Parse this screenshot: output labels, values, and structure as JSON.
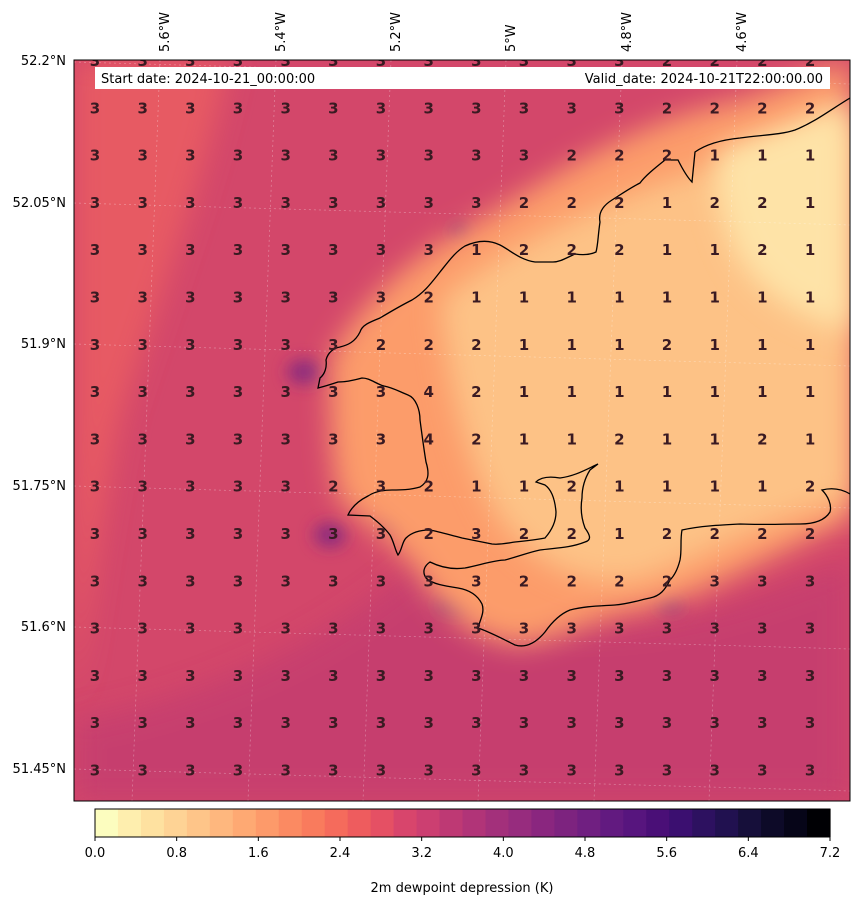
{
  "header": {
    "start_label": "Start date: 2024-10-21_00:00:00",
    "valid_label": "Valid_date: 2024-10-21T22:00:00.00"
  },
  "axes": {
    "lat_labels": [
      "52.2°N",
      "52.05°N",
      "51.9°N",
      "51.75°N",
      "51.6°N",
      "51.45°N"
    ],
    "lon_labels": [
      "5.6°W",
      "5.4°W",
      "5.2°W",
      "5°W",
      "4.8°W",
      "4.6°W"
    ]
  },
  "colorbar": {
    "title": "2m dewpoint depression (K)",
    "ticks": [
      "0.0",
      "0.8",
      "1.6",
      "2.4",
      "3.2",
      "4.0",
      "4.8",
      "5.6",
      "6.4",
      "7.2"
    ],
    "colors": [
      "#fcfdbf",
      "#feeeae",
      "#fee1a0",
      "#fed395",
      "#fec589",
      "#feb77e",
      "#fea973",
      "#fd9a6a",
      "#fb8a62",
      "#f97b5d",
      "#f56b5c",
      "#ee5c5e",
      "#e55064",
      "#d8456c",
      "#cc3f71",
      "#be3974",
      "#b13478",
      "#a3307b",
      "#972c7e",
      "#8a267f",
      "#7d237f",
      "#701f81",
      "#621a80",
      "#57157e",
      "#4a0f77",
      "#3b0f70",
      "#2d1160",
      "#211150",
      "#160f3a",
      "#0d0a28",
      "#060518",
      "#000004"
    ]
  },
  "map_colors": {
    "sea_base": "#d3476a",
    "sea_outer": "#c43c6f",
    "sea_west": "#e75a64",
    "land_warm": "#fc9c6a",
    "land_hot": "#fdc286",
    "land_pale": "#fee3a7",
    "dark_patch": "#8a2b7e",
    "coastline": "#000000"
  },
  "grid_values": [
    [
      "3",
      "3",
      "3",
      "3",
      "3",
      "3",
      "3",
      "3",
      "3",
      "3",
      "3",
      "3",
      "2",
      "2",
      "2",
      "2"
    ],
    [
      "3",
      "3",
      "3",
      "3",
      "3",
      "3",
      "3",
      "3",
      "3",
      "3",
      "3",
      "3",
      "2",
      "2",
      "2",
      "2"
    ],
    [
      "3",
      "3",
      "3",
      "3",
      "3",
      "3",
      "3",
      "3",
      "3",
      "3",
      "2",
      "2",
      "2",
      "1",
      "1",
      "1"
    ],
    [
      "3",
      "3",
      "3",
      "3",
      "3",
      "3",
      "3",
      "3",
      "3",
      "2",
      "2",
      "2",
      "1",
      "2",
      "2",
      "1"
    ],
    [
      "3",
      "3",
      "3",
      "3",
      "3",
      "3",
      "3",
      "3",
      "1",
      "2",
      "2",
      "2",
      "1",
      "1",
      "2",
      "1"
    ],
    [
      "3",
      "3",
      "3",
      "3",
      "3",
      "3",
      "3",
      "2",
      "1",
      "1",
      "1",
      "1",
      "1",
      "1",
      "1",
      "1"
    ],
    [
      "3",
      "3",
      "3",
      "3",
      "3",
      "3",
      "2",
      "2",
      "2",
      "1",
      "1",
      "1",
      "2",
      "1",
      "1",
      "1"
    ],
    [
      "3",
      "3",
      "3",
      "3",
      "3",
      "3",
      "3",
      "4",
      "2",
      "1",
      "1",
      "1",
      "1",
      "1",
      "1",
      "1"
    ],
    [
      "3",
      "3",
      "3",
      "3",
      "3",
      "3",
      "3",
      "4",
      "2",
      "1",
      "1",
      "2",
      "1",
      "1",
      "2",
      "1"
    ],
    [
      "3",
      "3",
      "3",
      "3",
      "3",
      "2",
      "3",
      "2",
      "1",
      "1",
      "2",
      "1",
      "1",
      "1",
      "1",
      "2"
    ],
    [
      "3",
      "3",
      "3",
      "3",
      "3",
      "3",
      "3",
      "2",
      "3",
      "2",
      "2",
      "1",
      "2",
      "2",
      "2",
      "2"
    ],
    [
      "3",
      "3",
      "3",
      "3",
      "3",
      "3",
      "3",
      "3",
      "3",
      "2",
      "2",
      "2",
      "2",
      "3",
      "3",
      "3"
    ],
    [
      "3",
      "3",
      "3",
      "3",
      "3",
      "3",
      "3",
      "3",
      "3",
      "3",
      "3",
      "3",
      "3",
      "3",
      "3",
      "3"
    ],
    [
      "3",
      "3",
      "3",
      "3",
      "3",
      "3",
      "3",
      "3",
      "3",
      "3",
      "3",
      "3",
      "3",
      "3",
      "3",
      "3"
    ],
    [
      "3",
      "3",
      "3",
      "3",
      "3",
      "3",
      "3",
      "3",
      "3",
      "3",
      "3",
      "3",
      "3",
      "3",
      "3",
      "3"
    ],
    [
      "3",
      "3",
      "3",
      "3",
      "3",
      "3",
      "3",
      "3",
      "3",
      "3",
      "3",
      "3",
      "3",
      "3",
      "3",
      "3"
    ]
  ]
}
